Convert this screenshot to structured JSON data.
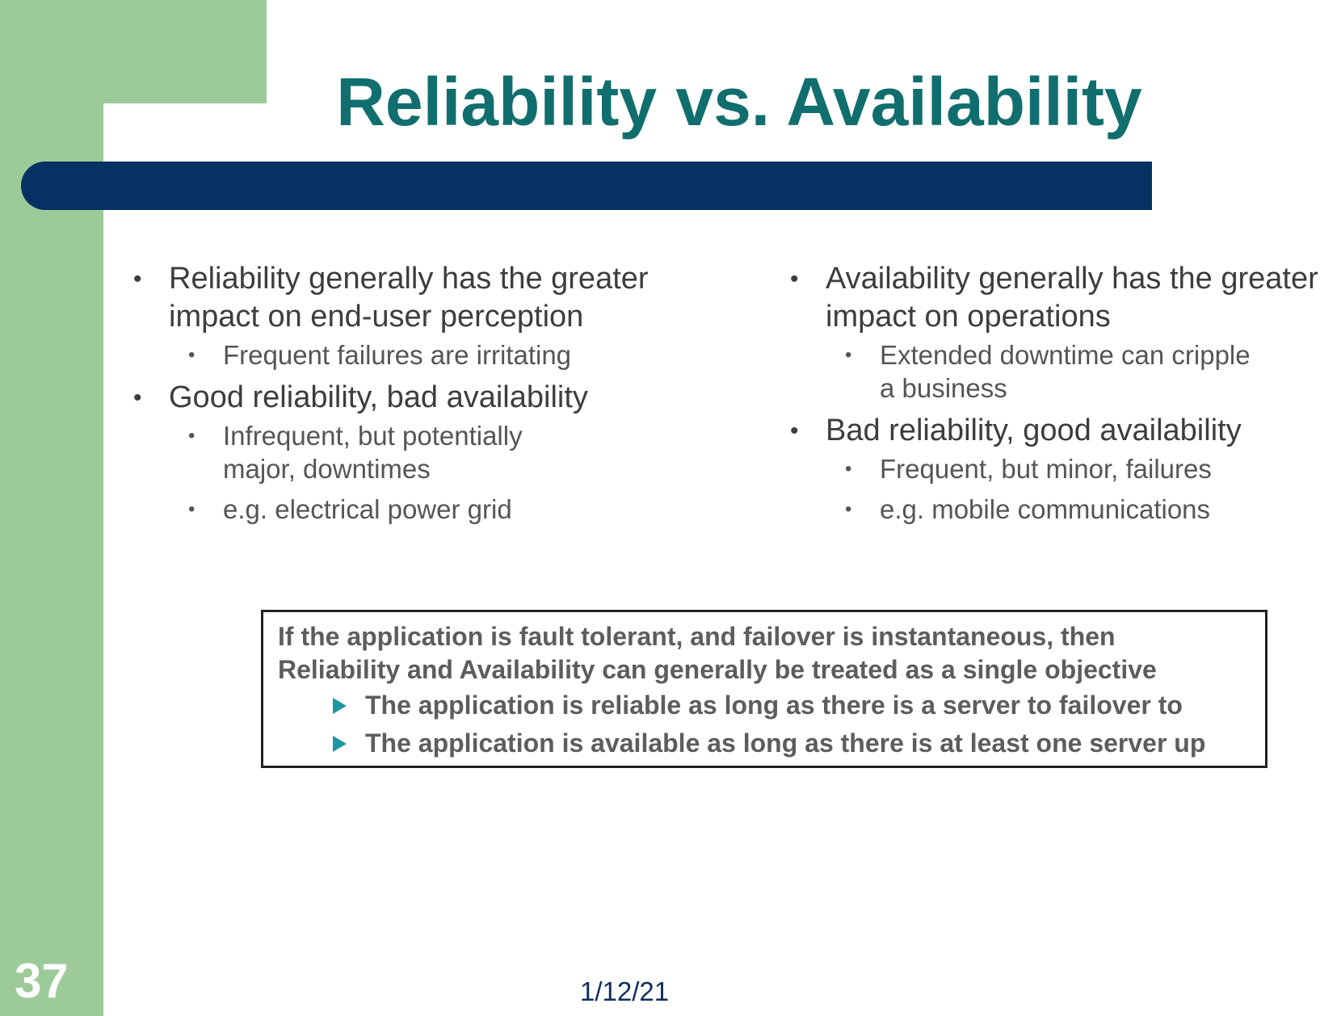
{
  "slide": {
    "title": "Reliability vs. Availability",
    "number": "37",
    "date": "1/12/21"
  },
  "left_column": {
    "items": [
      {
        "text": "Reliability generally has the greater impact on end-user perception"
      },
      {
        "text": "Frequent failures are irritating"
      },
      {
        "text": "Good reliability, bad availability"
      },
      {
        "text": "Infrequent, but potentially major, downtimes"
      },
      {
        "text": "e.g. electrical power grid"
      }
    ]
  },
  "right_column": {
    "items": [
      {
        "text": "Availability generally has the greater impact on operations"
      },
      {
        "text": "Extended downtime can cripple a business"
      },
      {
        "text": "Bad reliability, good availability"
      },
      {
        "text": "Frequent, but minor, failures"
      },
      {
        "text": "e.g. mobile communications"
      }
    ]
  },
  "callout": {
    "line1": "If the application is fault tolerant, and failover is instantaneous, then",
    "line2": "Reliability and Availability can generally be treated as a single objective",
    "sub_items": [
      "The application is reliable as long as there is a server to failover to",
      "The application is available as long as there is at least one server up"
    ]
  },
  "colors": {
    "sidebar": "#9dca99",
    "title": "#116e6e",
    "rule": "#053262",
    "callout_arrow": "#1e96a4"
  }
}
